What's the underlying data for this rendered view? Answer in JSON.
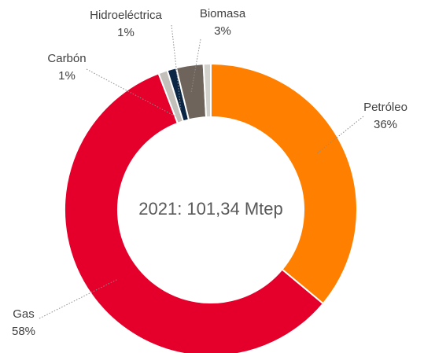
{
  "chart_data": {
    "type": "donut",
    "annotation": "2021: 101,34 Mtep",
    "categories": [
      "Petróleo",
      "Gas",
      "Carbón",
      "Hidroeléctrica",
      "Biomasa",
      null
    ],
    "values": [
      36,
      58,
      1,
      1,
      3,
      0.8
    ],
    "value_labels": [
      "36%",
      "58%",
      "1%",
      "1%",
      "3%",
      null
    ],
    "colors": [
      "#ff8000",
      "#e4002b",
      "#c3bfbb",
      "#0b2545",
      "#6f645b",
      "#d3d1cc"
    ]
  }
}
